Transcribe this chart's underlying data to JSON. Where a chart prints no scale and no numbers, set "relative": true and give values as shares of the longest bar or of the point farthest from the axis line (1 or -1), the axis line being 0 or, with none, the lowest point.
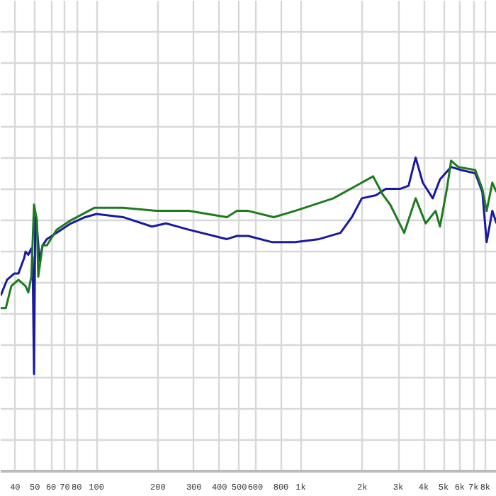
{
  "chart_data": {
    "type": "line",
    "relative": true,
    "log": "x",
    "grid": true,
    "marker": "none",
    "line_style": "solid",
    "xlim": [
      34,
      9100
    ],
    "xticks": [
      40,
      50,
      60,
      70,
      80,
      100,
      200,
      300,
      400,
      500,
      600,
      800,
      {
        "value": 1000,
        "label": "1k"
      },
      {
        "value": 2000,
        "label": "2k"
      },
      {
        "value": 3000,
        "label": "3k"
      },
      {
        "value": 4000,
        "label": "4k"
      },
      {
        "value": 5000,
        "label": "5k"
      },
      {
        "value": 6000,
        "label": "6k"
      },
      {
        "value": 7000,
        "label": "7k"
      },
      {
        "value": 8000,
        "label": "8k"
      }
    ],
    "series": [
      {
        "color": "#1a1aa0",
        "x": [
          34,
          36.5,
          39.6,
          41.5,
          44.3,
          45,
          46.4,
          48,
          48.7,
          49.5,
          50.2,
          51.1,
          52.7,
          54.5,
          57.2,
          63.9,
          75,
          88,
          100,
          135,
          187,
          219,
          283,
          435,
          487,
          553,
          727,
          938,
          1230,
          1565,
          1778,
          1990,
          2335,
          2610,
          3060,
          3370,
          3650,
          3955,
          4425,
          4800,
          5445,
          6095,
          7150,
          7740,
          8125,
          8660,
          9080
        ],
        "values": [
          0.56,
          0.61,
          0.63,
          0.63,
          0.68,
          0.7,
          0.69,
          0.71,
          0.68,
          0.31,
          0.81,
          0.78,
          0.67,
          0.72,
          0.74,
          0.76,
          0.79,
          0.81,
          0.82,
          0.81,
          0.78,
          0.79,
          0.77,
          0.74,
          0.75,
          0.75,
          0.73,
          0.73,
          0.74,
          0.76,
          0.81,
          0.87,
          0.88,
          0.9,
          0.9,
          0.91,
          1.0,
          0.92,
          0.87,
          0.93,
          0.97,
          0.96,
          0.95,
          0.89,
          0.73,
          0.83,
          0.79
        ]
      },
      {
        "color": "#1e7a1e",
        "x": [
          34,
          36,
          38.3,
          41.5,
          45,
          46.4,
          48,
          49.5,
          51.1,
          51.9,
          54.5,
          57.2,
          63.9,
          75,
          98,
          135,
          196,
          283,
          435,
          487,
          553,
          738,
          938,
          1445,
          1990,
          2260,
          2530,
          2740,
          3210,
          3650,
          4085,
          4570,
          4800,
          5190,
          5445,
          5900,
          7150,
          7740,
          8125,
          8660,
          9080
        ],
        "values": [
          0.52,
          0.52,
          0.59,
          0.61,
          0.59,
          0.57,
          0.62,
          0.85,
          0.8,
          0.62,
          0.72,
          0.72,
          0.77,
          0.8,
          0.84,
          0.84,
          0.83,
          0.83,
          0.81,
          0.83,
          0.83,
          0.81,
          0.83,
          0.87,
          0.92,
          0.94,
          0.88,
          0.85,
          0.76,
          0.87,
          0.79,
          0.83,
          0.78,
          0.9,
          0.99,
          0.97,
          0.96,
          0.9,
          0.83,
          0.92,
          0.89
        ]
      }
    ]
  }
}
